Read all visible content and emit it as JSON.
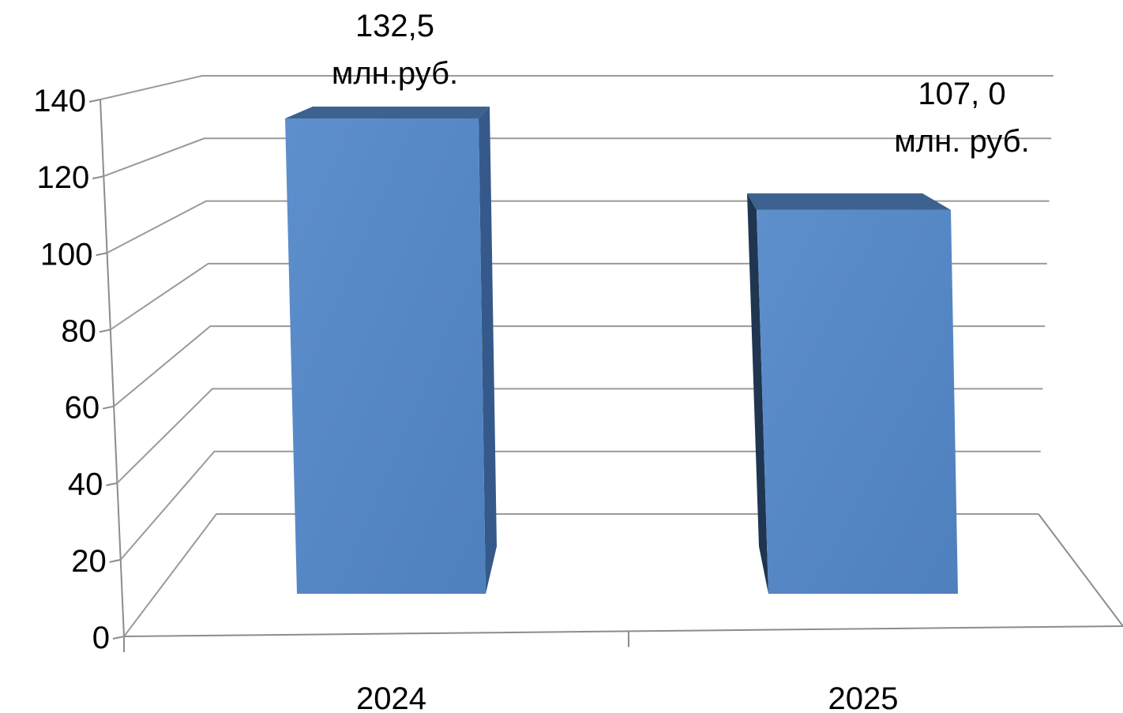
{
  "chart_data": {
    "type": "bar",
    "style": "3d-column",
    "title": "",
    "xlabel": "",
    "ylabel": "",
    "categories": [
      "2024",
      "2025"
    ],
    "series": [
      {
        "values": [
          132.5,
          107.0
        ],
        "color": "#5586C4",
        "data_labels": [
          [
            "132,5",
            "млн.руб."
          ],
          [
            "107, 0",
            "млн. руб."
          ]
        ]
      }
    ],
    "ylim": [
      0,
      140
    ],
    "ytick_labels": [
      "0",
      "20",
      "40",
      "60",
      "80",
      "100",
      "120",
      "140"
    ],
    "grid": true,
    "legend": "none"
  }
}
